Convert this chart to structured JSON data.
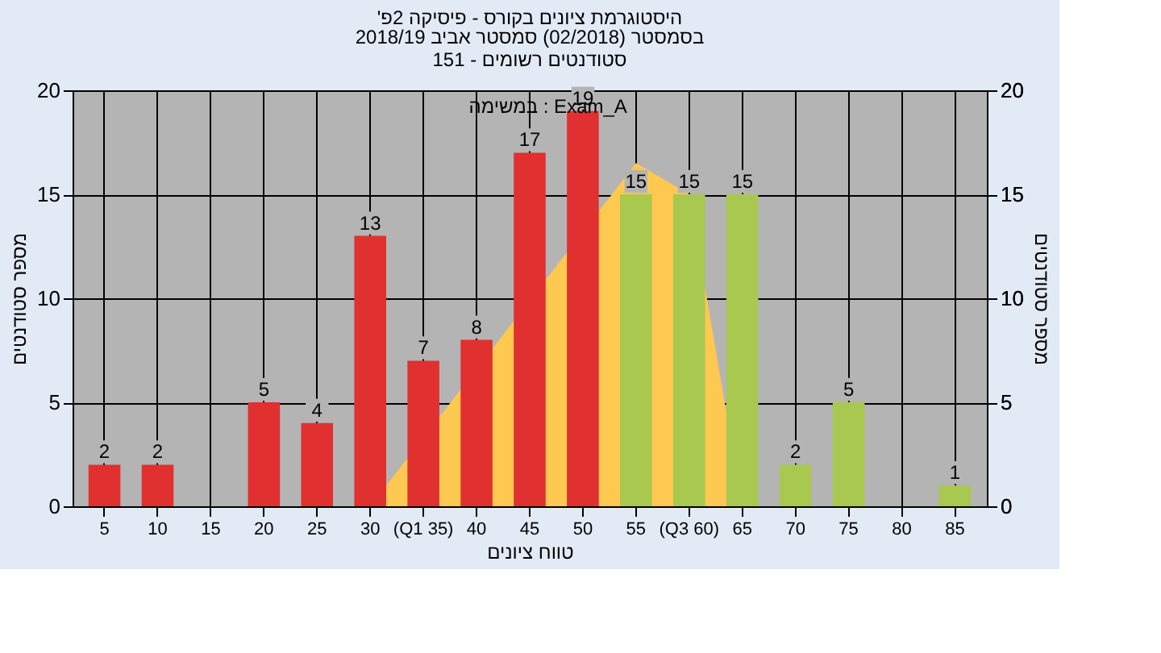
{
  "chart_data": {
    "type": "bar",
    "title": "'היסטוגרמת ציונים בקורס - פיסיקה 2פ",
    "subtitle": "בסמסטר  (02/2018)  סמסטר אביב 2018/19\nסטודנטים רשומים - 151",
    "xlabel": "טווח ציונים",
    "ylabel": "מספר סטודנטים",
    "categories": [
      "5",
      "10",
      "15",
      "20",
      "25",
      "30",
      "(Q1 35)",
      "40",
      "45",
      "50",
      "55",
      "(Q3 60)",
      "65",
      "70",
      "75",
      "80",
      "85"
    ],
    "values": [
      2,
      2,
      0,
      5,
      4,
      13,
      7,
      8,
      17,
      19,
      15,
      15,
      15,
      2,
      5,
      0,
      1
    ],
    "value_labels": [
      "2",
      "2",
      null,
      "5",
      "4",
      "13",
      "7",
      "8",
      "17",
      "19",
      "15",
      "15",
      "15",
      "2",
      "5",
      null,
      "1"
    ],
    "colors": [
      "#e03030",
      "#e03030",
      "#e03030",
      "#e03030",
      "#e03030",
      "#e03030",
      "#e03030",
      "#e03030",
      "#e03030",
      "#e03030",
      "#a8c850",
      "#a8c850",
      "#a8c850",
      "#a8c850",
      "#a8c850",
      "#a8c850",
      "#a8c850"
    ],
    "series": [
      {
        "type": "area",
        "color": "#ffc850",
        "values": [
          null,
          null,
          null,
          null,
          null,
          0,
          null,
          null,
          null,
          null,
          16.5,
          15,
          0,
          null,
          null,
          null,
          null
        ]
      }
    ],
    "annotations": [
      "במשימה : Exam_A"
    ],
    "ylim": [
      0,
      20
    ],
    "yticks": [
      0,
      5,
      10,
      15,
      20
    ],
    "y2lim": [
      0,
      20
    ],
    "y2ticks": [
      0,
      5,
      10,
      15,
      20
    ],
    "grid": true
  }
}
